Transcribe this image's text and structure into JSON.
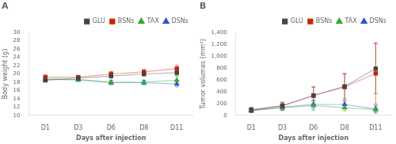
{
  "chart_data": [
    {
      "type": "line",
      "title": "A",
      "x_label": "Days after injection",
      "y_label": "Body weight (g)",
      "categories": [
        "D1",
        "D3",
        "D6",
        "D8",
        "D11"
      ],
      "ylim": [
        10,
        30
      ],
      "yticks": [
        10,
        12,
        14,
        16,
        18,
        20,
        22,
        24,
        26,
        28,
        30
      ],
      "grid": false,
      "legend": "upper right",
      "series": [
        {
          "name": "GLU",
          "color": "#444444",
          "marker": "square",
          "values": [
            18.5,
            19.0,
            19.5,
            20.0,
            20.3
          ],
          "errors": [
            0.5,
            0.5,
            0.5,
            0.5,
            0.6
          ]
        },
        {
          "name": "BSNs",
          "color": "#cc2200",
          "marker": "square",
          "values": [
            19.2,
            19.2,
            20.0,
            20.5,
            21.3
          ],
          "errors": [
            0.6,
            0.5,
            0.6,
            0.6,
            0.8
          ]
        },
        {
          "name": "TAX",
          "color": "#33aa33",
          "marker": "triangle",
          "values": [
            18.8,
            18.7,
            18.0,
            18.0,
            18.5
          ],
          "errors": [
            0.5,
            0.5,
            0.5,
            0.5,
            0.9
          ]
        },
        {
          "name": "DSNs",
          "color": "#3355cc",
          "marker": "triangle",
          "values": [
            18.7,
            18.6,
            17.9,
            17.9,
            17.6
          ],
          "errors": [
            0.5,
            0.4,
            0.5,
            0.5,
            0.7
          ]
        }
      ]
    },
    {
      "type": "line",
      "title": "B",
      "x_label": "Days after injection",
      "y_label": "Tumor volumes (mm³)",
      "categories": [
        "D1",
        "D3",
        "D6",
        "D8",
        "D11"
      ],
      "ylim": [
        0,
        1400
      ],
      "yticks": [
        0,
        200,
        400,
        600,
        800,
        {
          "value": 1000,
          "label": "1,000"
        },
        {
          "value": 1200,
          "label": "1,200"
        },
        {
          "value": 1400,
          "label": "1,400"
        }
      ],
      "grid": false,
      "legend": "upper right",
      "series": [
        {
          "name": "GLU",
          "color": "#444444",
          "marker": "square",
          "values": [
            95,
            160,
            335,
            490,
            790
          ],
          "errors": [
            40,
            55,
            140,
            210,
            420
          ]
        },
        {
          "name": "BSNs",
          "color": "#cc2200",
          "marker": "square",
          "values": [
            90,
            165,
            335,
            480,
            710
          ],
          "errors": [
            35,
            60,
            150,
            230,
            520
          ]
        },
        {
          "name": "TAX",
          "color": "#33aa33",
          "marker": "triangle",
          "values": [
            80,
            130,
            165,
            130,
            95
          ],
          "errors": [
            35,
            50,
            80,
            55,
            60
          ]
        },
        {
          "name": "DSNs",
          "color": "#3355cc",
          "marker": "triangle",
          "values": [
            80,
            140,
            185,
            185,
            110
          ],
          "errors": [
            35,
            55,
            70,
            60,
            60
          ]
        }
      ]
    }
  ]
}
